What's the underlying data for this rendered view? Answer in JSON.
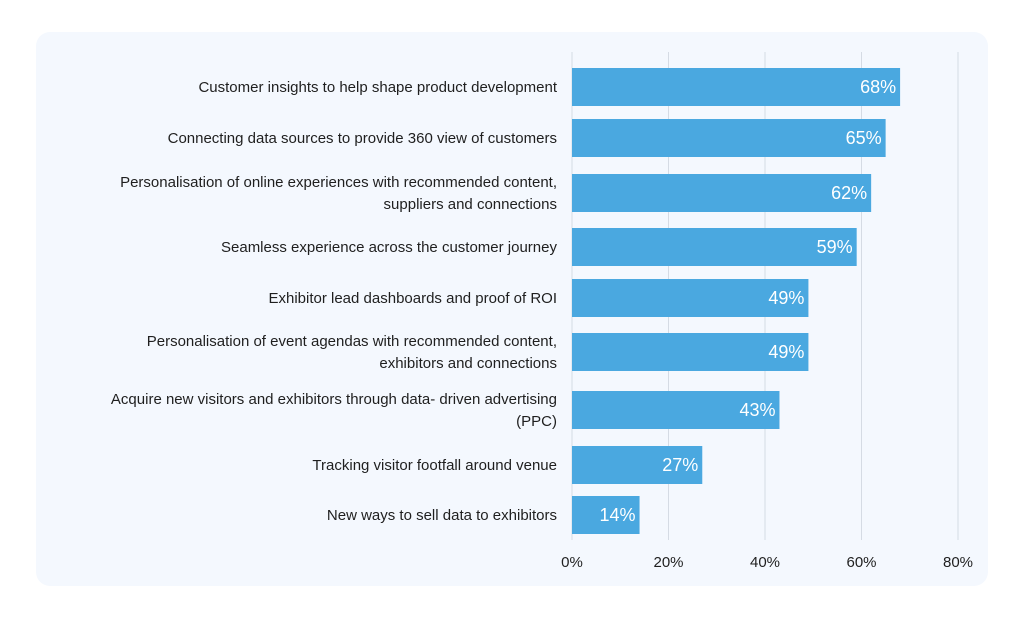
{
  "chart_data": {
    "type": "bar",
    "orientation": "horizontal",
    "title": "",
    "xlabel": "",
    "ylabel": "",
    "xlim": [
      0,
      80
    ],
    "x_ticks": [
      0,
      20,
      40,
      60,
      80
    ],
    "x_tick_labels": [
      "0%",
      "20%",
      "40%",
      "60%",
      "80%"
    ],
    "grid": "vertical",
    "bar_color": "#4aa8e0",
    "categories": [
      [
        "Customer insights to help shape product development"
      ],
      [
        "Connecting data sources to provide 360 view of customers"
      ],
      [
        "Personalisation of online experiences with recommended content,",
        "suppliers and connections"
      ],
      [
        "Seamless experience across the customer journey"
      ],
      [
        "Exhibitor lead dashboards and proof of ROI"
      ],
      [
        "Personalisation of event agendas with recommended content,",
        "exhibitors and connections"
      ],
      [
        "Acquire new visitors and exhibitors through data- driven advertising",
        "(PPC)"
      ],
      [
        "Tracking visitor footfall around venue"
      ],
      [
        "New ways to sell data to exhibitors"
      ]
    ],
    "values": [
      68,
      65,
      62,
      59,
      49,
      49,
      43,
      27,
      14
    ],
    "value_labels": [
      "68%",
      "65%",
      "62%",
      "59%",
      "49%",
      "49%",
      "43%",
      "27%",
      "14%"
    ]
  }
}
